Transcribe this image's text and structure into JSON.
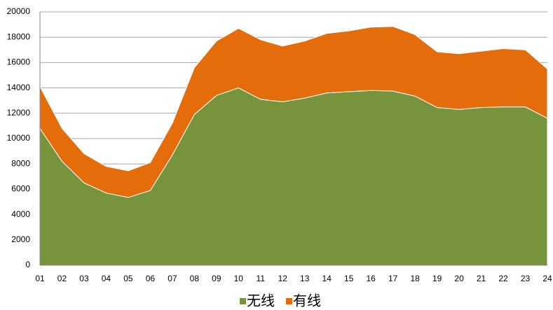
{
  "chart_data": {
    "type": "stacked_area",
    "categories": [
      "01",
      "02",
      "03",
      "04",
      "05",
      "06",
      "07",
      "08",
      "09",
      "10",
      "11",
      "12",
      "13",
      "14",
      "15",
      "16",
      "17",
      "18",
      "19",
      "20",
      "21",
      "22",
      "23",
      "24"
    ],
    "series": [
      {
        "name": "无线",
        "color": "#77933c",
        "values": [
          10800,
          8200,
          6500,
          5700,
          5350,
          5900,
          8700,
          11900,
          13400,
          14000,
          13100,
          12900,
          13200,
          13600,
          13700,
          13800,
          13750,
          13350,
          12450,
          12300,
          12450,
          12500,
          12500,
          11600
        ]
      },
      {
        "name": "有线",
        "color": "#e46c0a",
        "values": [
          3300,
          2600,
          2300,
          2100,
          2100,
          2200,
          2500,
          3700,
          4300,
          4700,
          4700,
          4400,
          4500,
          4700,
          4800,
          5000,
          5100,
          4850,
          4400,
          4400,
          4450,
          4600,
          4500,
          3900
        ]
      }
    ],
    "ylim": [
      0,
      20000
    ],
    "yticks": [
      0,
      2000,
      4000,
      6000,
      8000,
      10000,
      12000,
      14000,
      16000,
      18000,
      20000
    ],
    "grid": true,
    "legend": "bottom"
  }
}
